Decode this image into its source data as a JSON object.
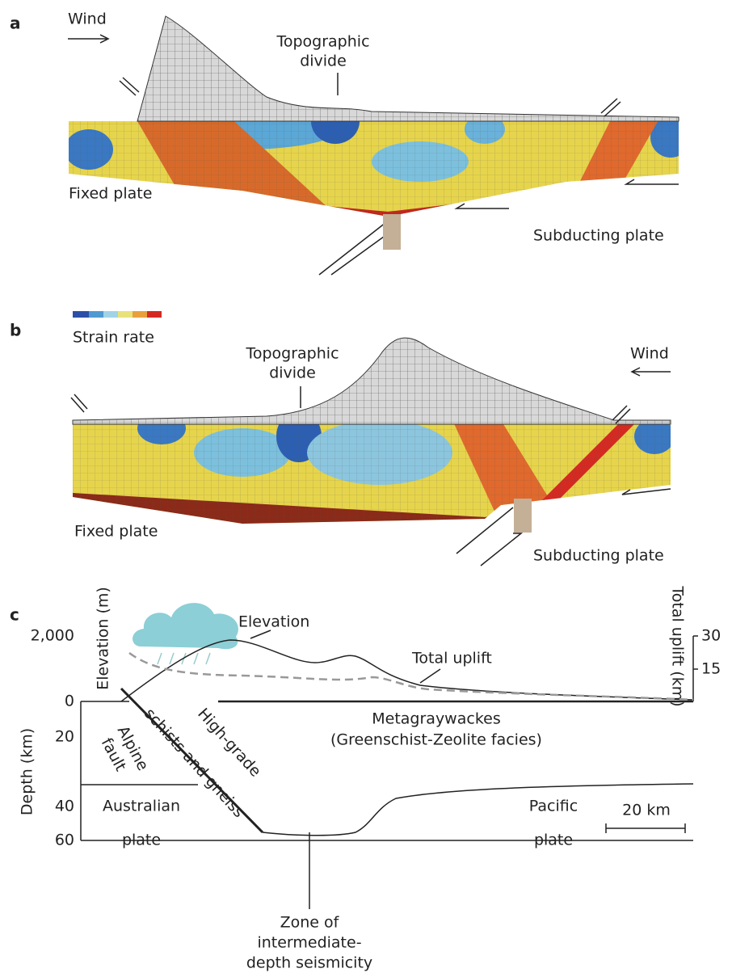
{
  "panel_a": {
    "label": "a",
    "wind": "Wind",
    "divide": [
      "Topographic",
      "divide"
    ],
    "fixed_plate": "Fixed plate",
    "subducting_plate": "Subducting plate"
  },
  "panel_b": {
    "label": "b",
    "legend": "Strain rate",
    "divide": [
      "Topographic",
      "divide"
    ],
    "wind": "Wind",
    "fixed_plate": "Fixed plate",
    "subducting_plate": "Subducting plate"
  },
  "panel_c": {
    "label": "c",
    "elevation_axis": "Elevation (m)",
    "uplift_axis": "Total uplift (km)",
    "depth_axis": "Depth (km)",
    "elevation_ticks": [
      "2,000",
      "0"
    ],
    "depth_ticks": [
      "0",
      "20",
      "40",
      "60"
    ],
    "uplift_ticks": [
      "30",
      "15"
    ],
    "elevation_curve": "Elevation",
    "uplift_curve": "Total uplift",
    "metagraywackes": [
      "Metagraywackes",
      "(Greenschist-Zeolite facies)"
    ],
    "high_grade": [
      "High-grade",
      "schists and gneiss"
    ],
    "alpine_fault": [
      "Alpine",
      "fault"
    ],
    "australian_plate": [
      "Australian",
      "plate"
    ],
    "pacific_plate": [
      "Pacific",
      "plate"
    ],
    "scale_bar": "20 km",
    "seismicity": [
      "Zone of",
      "intermediate-",
      "depth seismicity"
    ]
  }
}
